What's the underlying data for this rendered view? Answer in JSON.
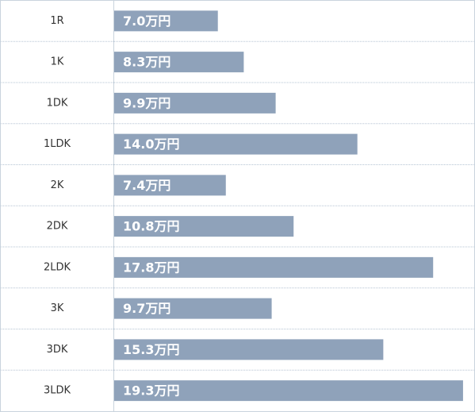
{
  "chart_data": {
    "type": "bar",
    "orientation": "horizontal",
    "categories": [
      "1R",
      "1K",
      "1DK",
      "1LDK",
      "2K",
      "2DK",
      "2LDK",
      "3K",
      "3DK",
      "3LDK"
    ],
    "values": [
      7.0,
      8.3,
      9.9,
      14.0,
      7.4,
      10.8,
      17.8,
      9.7,
      15.3,
      19.3
    ],
    "value_labels": [
      "7.0万円",
      "8.3万円",
      "9.9万円",
      "14.0万円",
      "7.4万円",
      "10.8万円",
      "17.8万円",
      "9.7万円",
      "15.3万円",
      "19.3万円"
    ],
    "color": "#8fa2ba",
    "xlim": [
      1.8,
      19.9
    ]
  }
}
